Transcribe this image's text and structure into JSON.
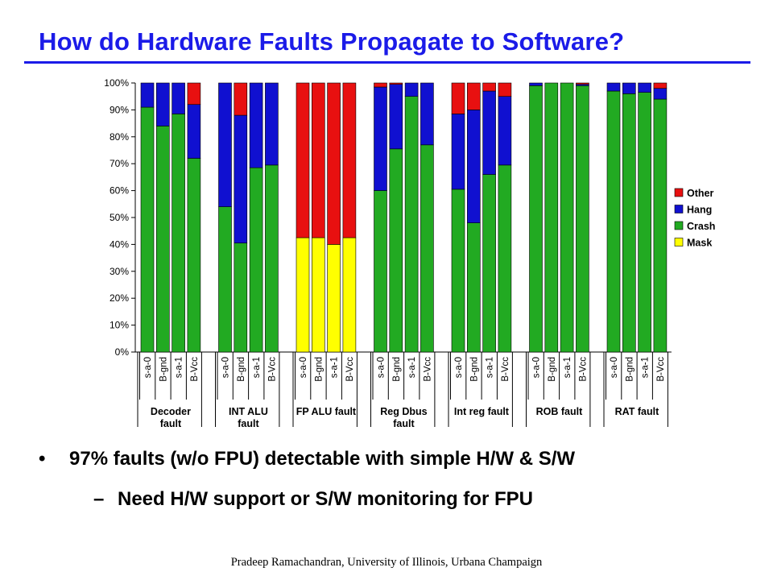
{
  "slide": {
    "title": "How do Hardware Faults Propagate to Software?",
    "bullets": [
      {
        "marker": "•",
        "text": "97% faults (w/o FPU) detectable with simple H/W & S/W"
      },
      {
        "marker": "–",
        "text": "Need H/W support or S/W monitoring for FPU"
      }
    ],
    "footer": "Pradeep Ramachandran, University of Illinois, Urbana Champaign"
  },
  "chart_data": {
    "type": "bar",
    "stacked": true,
    "title": "",
    "xlabel": "",
    "ylabel": "",
    "ylim": [
      0,
      100
    ],
    "y_ticks": [
      "0%",
      "10%",
      "20%",
      "30%",
      "40%",
      "50%",
      "60%",
      "70%",
      "80%",
      "90%",
      "100%"
    ],
    "grid": false,
    "legend_position": "right",
    "series_order": [
      "Mask",
      "Crash",
      "Hang",
      "Other"
    ],
    "legend": [
      "Other",
      "Hang",
      "Crash",
      "Mask"
    ],
    "colors": {
      "Mask": "#ffff00",
      "Crash": "#22aa22",
      "Hang": "#1010d0",
      "Other": "#e81010"
    },
    "groups": [
      {
        "label": [
          "Decoder",
          "fault"
        ],
        "bars": [
          {
            "category": "s-a-0",
            "values": [
              0,
              91,
              9,
              0
            ]
          },
          {
            "category": "B-gnd",
            "values": [
              0,
              84,
              16,
              0
            ]
          },
          {
            "category": "s-a-1",
            "values": [
              0,
              88.5,
              11.5,
              0
            ]
          },
          {
            "category": "B-Vcc",
            "values": [
              0,
              72,
              20,
              8
            ]
          }
        ]
      },
      {
        "label": [
          "INT ALU",
          "fault"
        ],
        "bars": [
          {
            "category": "s-a-0",
            "values": [
              0,
              54,
              46,
              0
            ]
          },
          {
            "category": "B-gnd",
            "values": [
              0,
              40.5,
              47.5,
              12
            ]
          },
          {
            "category": "s-a-1",
            "values": [
              0,
              68.5,
              31.5,
              0
            ]
          },
          {
            "category": "B-Vcc",
            "values": [
              0,
              69.5,
              30.5,
              0
            ]
          }
        ]
      },
      {
        "label": [
          "FP ALU fault"
        ],
        "bars": [
          {
            "category": "s-a-0",
            "values": [
              42.5,
              0,
              0,
              57.5
            ]
          },
          {
            "category": "B-gnd",
            "values": [
              42.5,
              0,
              0,
              57.5
            ]
          },
          {
            "category": "s-a-1",
            "values": [
              40,
              0,
              0,
              60
            ]
          },
          {
            "category": "B-Vcc",
            "values": [
              42.5,
              0,
              0,
              57.5
            ]
          }
        ]
      },
      {
        "label": [
          "Reg Dbus",
          "fault"
        ],
        "bars": [
          {
            "category": "s-a-0",
            "values": [
              0,
              60,
              38.5,
              1.5
            ]
          },
          {
            "category": "B-gnd",
            "values": [
              0,
              75.5,
              24,
              0.5
            ]
          },
          {
            "category": "s-a-1",
            "values": [
              0,
              95,
              5,
              0
            ]
          },
          {
            "category": "B-Vcc",
            "values": [
              0,
              77,
              23,
              0
            ]
          }
        ]
      },
      {
        "label": [
          "Int reg fault"
        ],
        "bars": [
          {
            "category": "s-a-0",
            "values": [
              0,
              60.5,
              28,
              11.5
            ]
          },
          {
            "category": "B-gnd",
            "values": [
              0,
              48,
              42,
              10
            ]
          },
          {
            "category": "s-a-1",
            "values": [
              0,
              66,
              31,
              3
            ]
          },
          {
            "category": "B-Vcc",
            "values": [
              0,
              69.5,
              25.5,
              5
            ]
          }
        ]
      },
      {
        "label": [
          "ROB fault"
        ],
        "bars": [
          {
            "category": "s-a-0",
            "values": [
              0,
              99,
              1,
              0
            ]
          },
          {
            "category": "B-gnd",
            "values": [
              0,
              100,
              0,
              0
            ]
          },
          {
            "category": "s-a-1",
            "values": [
              0,
              100,
              0,
              0
            ]
          },
          {
            "category": "B-Vcc",
            "values": [
              0,
              99,
              0.5,
              0.5
            ]
          }
        ]
      },
      {
        "label": [
          "RAT fault"
        ],
        "bars": [
          {
            "category": "s-a-0",
            "values": [
              0,
              97,
              3,
              0
            ]
          },
          {
            "category": "B-gnd",
            "values": [
              0,
              96,
              4,
              0
            ]
          },
          {
            "category": "s-a-1",
            "values": [
              0,
              96.5,
              3.5,
              0
            ]
          },
          {
            "category": "B-Vcc",
            "values": [
              0,
              94,
              4,
              2
            ]
          }
        ]
      }
    ]
  }
}
